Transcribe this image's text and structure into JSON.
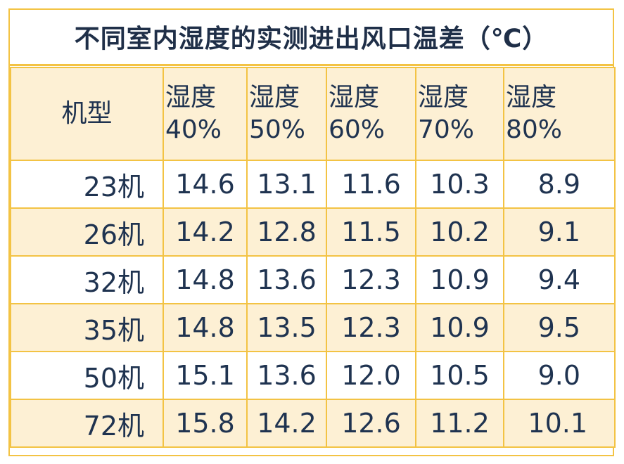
{
  "title": "不同室内湿度的实测进出风口温差（℃）",
  "header": {
    "model_label": "机型",
    "columns": [
      {
        "line1": "湿度",
        "line2": "40%"
      },
      {
        "line1": "湿度",
        "line2": "50%"
      },
      {
        "line1": "湿度",
        "line2": "60%"
      },
      {
        "line1": "湿度",
        "line2": "70%"
      },
      {
        "line1": "湿度",
        "line2": "80%"
      }
    ]
  },
  "rows": [
    {
      "model": "23机",
      "values": [
        "14.6",
        "13.1",
        "11.6",
        "10.3",
        "8.9"
      ]
    },
    {
      "model": "26机",
      "values": [
        "14.2",
        "12.8",
        "11.5",
        "10.2",
        "9.1"
      ]
    },
    {
      "model": "32机",
      "values": [
        "14.8",
        "13.6",
        "12.3",
        "10.9",
        "9.4"
      ]
    },
    {
      "model": "35机",
      "values": [
        "14.8",
        "13.5",
        "12.3",
        "10.9",
        "9.5"
      ]
    },
    {
      "model": "50机",
      "values": [
        "15.1",
        "13.6",
        "12.0",
        "10.5",
        "9.0"
      ]
    },
    {
      "model": "72机",
      "values": [
        "15.8",
        "14.2",
        "12.6",
        "11.2",
        "10.1"
      ]
    }
  ],
  "colors": {
    "border": "#f3c344",
    "band": "#fdf0d4",
    "text": "#1f3350"
  }
}
